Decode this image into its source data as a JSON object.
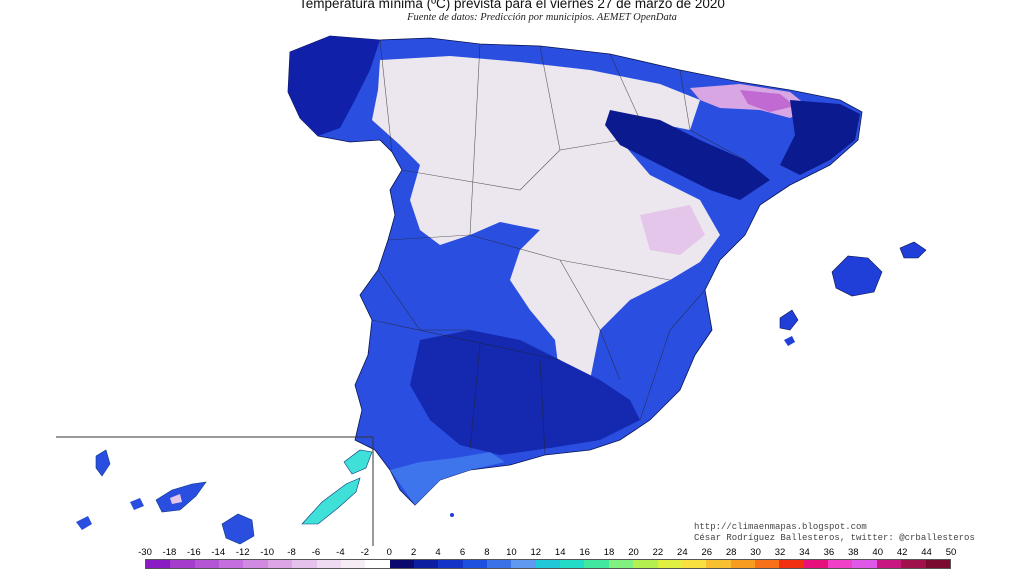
{
  "title": "Temperatura mínima (ºC) prevista para el viernes 27 de marzo de 2020",
  "subtitle": "Fuente de datos: Predicción por municipios. AEMET OpenData",
  "credits": {
    "url": "http://climaenmapas.blogspot.com",
    "author": "César Rodríguez Ballesteros, twitter: @crballesteros"
  },
  "legend": {
    "ticks": [
      "-30",
      "-18",
      "-16",
      "-14",
      "-12",
      "-10",
      "-8",
      "-6",
      "-4",
      "-2",
      "0",
      "2",
      "4",
      "6",
      "8",
      "10",
      "12",
      "14",
      "16",
      "18",
      "20",
      "22",
      "24",
      "26",
      "28",
      "30",
      "32",
      "34",
      "36",
      "38",
      "40",
      "42",
      "44",
      "50"
    ],
    "colors": [
      "#8a1ec4",
      "#a43ccc",
      "#b455d6",
      "#c46edf",
      "#d08ae2",
      "#dca6e6",
      "#e5c2ec",
      "#eedbf1",
      "#f5ecf5",
      "#ffffff",
      "#0a0a6e",
      "#0e1ea0",
      "#1434c8",
      "#1e50e0",
      "#3c72e8",
      "#5f9af0",
      "#20c8d8",
      "#22dcc8",
      "#40e8a0",
      "#80f080",
      "#b4f050",
      "#e0f040",
      "#f8e040",
      "#f8c030",
      "#f89c20",
      "#f87018",
      "#f03010",
      "#e8107a",
      "#f040c8",
      "#e058e8",
      "#c81880",
      "#a0104a",
      "#7a0a30"
    ]
  },
  "map_legend_colors": {
    "cold_dark": "#0a1480",
    "cold_mid": "#1f3fd8",
    "cold_light": "#3d62e6",
    "near_zero": "#ece7ef",
    "subzero": "#dcc4e4",
    "frost": "#c98ad6",
    "warm": "#3fe0d8"
  }
}
